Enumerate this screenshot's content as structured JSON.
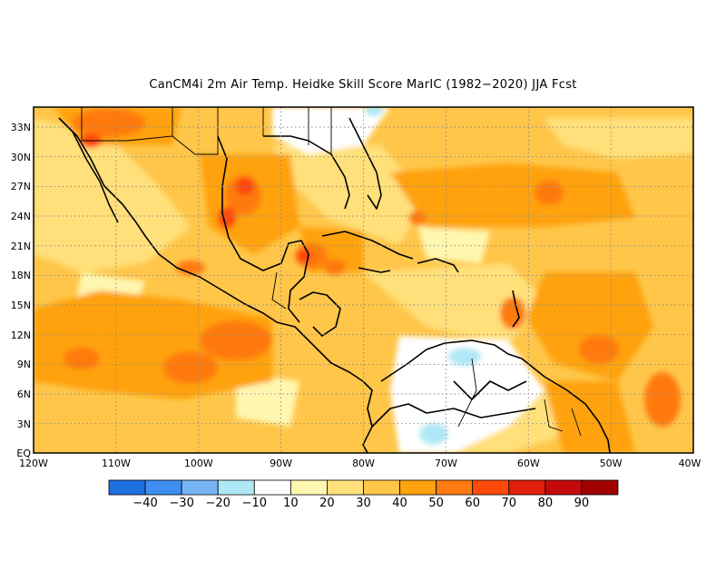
{
  "title": "CanCM4i  2m Air Temp. Heidke Skill Score MarIC (1982−2020) JJA Fcst",
  "map": {
    "lat_labels": [
      "33N",
      "30N",
      "27N",
      "24N",
      "21N",
      "18N",
      "15N",
      "12N",
      "9N",
      "6N",
      "3N",
      "EQ"
    ],
    "lat_values": [
      33,
      30,
      27,
      24,
      21,
      18,
      15,
      12,
      9,
      6,
      3,
      0
    ],
    "lon_labels": [
      "120W",
      "110W",
      "100W",
      "90W",
      "80W",
      "70W",
      "60W",
      "50W",
      "40W"
    ],
    "lon_values": [
      -120,
      -110,
      -100,
      -90,
      -80,
      -70,
      -60,
      -50,
      -40
    ]
  },
  "colorbar": {
    "colors": [
      "#1e6fe0",
      "#3d8ef0",
      "#76b3f5",
      "#aee8f6",
      "#ffffff",
      "#fff7b0",
      "#ffe07a",
      "#ffc64a",
      "#ffa20e",
      "#ff7a10",
      "#ff4a0a",
      "#e0200a",
      "#c40a0a",
      "#a00000"
    ],
    "labels": [
      "−40",
      "−30",
      "−20",
      "−10",
      "10",
      "20",
      "30",
      "40",
      "50",
      "60",
      "70",
      "80",
      "90"
    ]
  }
}
